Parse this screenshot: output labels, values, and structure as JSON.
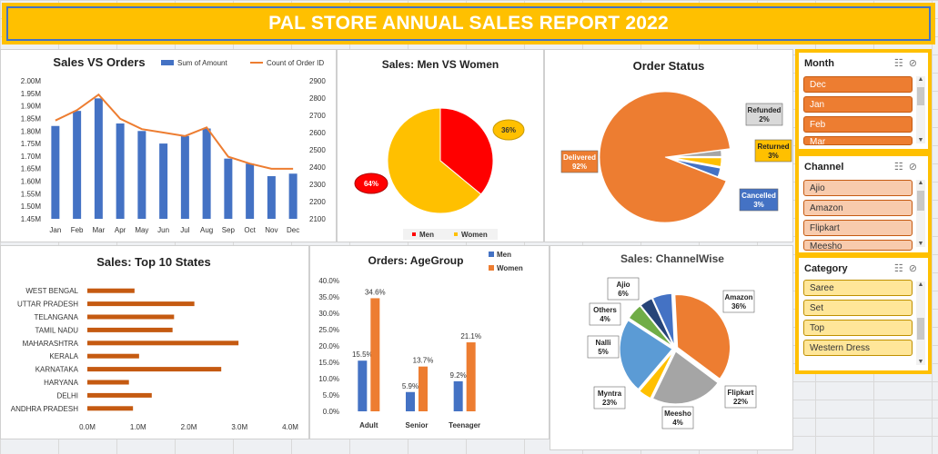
{
  "banner": {
    "title": "PAL STORE ANNUAL SALES REPORT 2022"
  },
  "colors": {
    "blue": "#4472c4",
    "orange": "#ed7d31",
    "yellow": "#ffc000",
    "red": "#ff0000",
    "grey": "#a5a5a5",
    "green": "#70ad47",
    "navy": "#264478",
    "lightblue": "#5b9bd5",
    "rust": "#c55a11"
  },
  "chart_data": [
    {
      "type": "bar",
      "title": "Sales VS Orders",
      "categories": [
        "Jan",
        "Feb",
        "Mar",
        "Apr",
        "May",
        "Jun",
        "Jul",
        "Aug",
        "Sep",
        "Oct",
        "Nov",
        "Dec"
      ],
      "series": [
        {
          "name": "Sum of Amount",
          "type": "bar",
          "axis": "left",
          "values": [
            1.82,
            1.88,
            1.93,
            1.83,
            1.8,
            1.75,
            1.78,
            1.81,
            1.69,
            1.67,
            1.62,
            1.63
          ]
        },
        {
          "name": "Count of Order ID",
          "type": "line",
          "axis": "right",
          "values": [
            2670,
            2730,
            2820,
            2680,
            2620,
            2600,
            2580,
            2630,
            2460,
            2420,
            2390,
            2390
          ]
        }
      ],
      "y_left": {
        "ylim": [
          1.45,
          2.0
        ],
        "ticks": [
          "2.00M",
          "1.95M",
          "1.90M",
          "1.85M",
          "1.80M",
          "1.75M",
          "1.70M",
          "1.65M",
          "1.60M",
          "1.55M",
          "1.50M",
          "1.45M"
        ]
      },
      "y_right": {
        "ylim": [
          2100,
          2900
        ],
        "ticks": [
          "2900",
          "2800",
          "2700",
          "2600",
          "2500",
          "2400",
          "2300",
          "2200",
          "2100"
        ]
      },
      "legend": "top"
    },
    {
      "type": "pie",
      "title": "Sales: Men VS Women",
      "labels": [
        "Men",
        "Women"
      ],
      "values": [
        36,
        64
      ],
      "data_labels": [
        "36%",
        "64%"
      ],
      "legend": "bottom"
    },
    {
      "type": "pie",
      "title": "Order Status",
      "labels": [
        "Delivered",
        "Refunded",
        "Returned",
        "Cancelled"
      ],
      "values": [
        92,
        2,
        3,
        3
      ],
      "data_labels": [
        "Delivered\n92%",
        "Refunded\n2%",
        "Returned\n3%",
        "Cancelled\n3%"
      ]
    },
    {
      "type": "bar",
      "orientation": "horizontal",
      "title": "Sales: Top 10 States",
      "categories": [
        "WEST BENGAL",
        "UTTAR PRADESH",
        "TELANGANA",
        "TAMIL NADU",
        "MAHARASHTRA",
        "KERALA",
        "KARNATAKA",
        "HARYANA",
        "DELHI",
        "ANDHRA PRADESH"
      ],
      "values": [
        0.93,
        2.11,
        1.71,
        1.68,
        2.98,
        1.02,
        2.64,
        0.82,
        1.27,
        0.9
      ],
      "xlim": [
        0,
        4.0
      ],
      "x_ticks": [
        "0.0M",
        "1.0M",
        "2.0M",
        "3.0M",
        "4.0M"
      ]
    },
    {
      "type": "bar",
      "title": "Orders: AgeGroup",
      "categories": [
        "Adult",
        "Senior",
        "Teenager"
      ],
      "series": [
        {
          "name": "Men",
          "values": [
            15.5,
            5.9,
            9.2
          ],
          "data_labels": [
            "15.5%",
            "5.9%",
            "9.2%"
          ]
        },
        {
          "name": "Women",
          "values": [
            34.6,
            13.7,
            21.1
          ],
          "data_labels": [
            "34.6%",
            "13.7%",
            "21.1%"
          ]
        }
      ],
      "ylim": [
        0,
        40
      ],
      "y_ticks": [
        "40.0%",
        "35.0%",
        "30.0%",
        "25.0%",
        "20.0%",
        "15.0%",
        "10.0%",
        "5.0%",
        "0.0%"
      ],
      "legend": "top-right"
    },
    {
      "type": "pie",
      "title": "Sales: ChannelWise",
      "labels": [
        "Amazon",
        "Flipkart",
        "Meesho",
        "Myntra",
        "Nalli",
        "Others",
        "Ajio"
      ],
      "values": [
        36,
        22,
        4,
        23,
        5,
        4,
        6
      ],
      "data_labels": [
        "Amazon\n36%",
        "Flipkart\n22%",
        "Meesho\n4%",
        "Myntra\n23%",
        "Nalli\n5%",
        "Others\n4%",
        "Ajio\n6%"
      ]
    }
  ],
  "slicers": [
    {
      "title": "Month",
      "items": [
        "Dec",
        "Jan",
        "Feb",
        "Mar"
      ],
      "fill": "#ed7d31",
      "border": "#c55a11",
      "text": "#ffffff"
    },
    {
      "title": "Channel",
      "items": [
        "Ajio",
        "Amazon",
        "Flipkart",
        "Meesho"
      ],
      "fill": "#f8cbad",
      "border": "#c55a11",
      "text": "#333333"
    },
    {
      "title": "Category",
      "items": [
        "Saree",
        "Set",
        "Top",
        "Western Dress"
      ],
      "fill": "#ffe699",
      "border": "#bf9000",
      "text": "#333333"
    }
  ],
  "slicer_icons": {
    "multi_select": "multi-select-icon",
    "clear_filter": "clear-filter-icon"
  }
}
